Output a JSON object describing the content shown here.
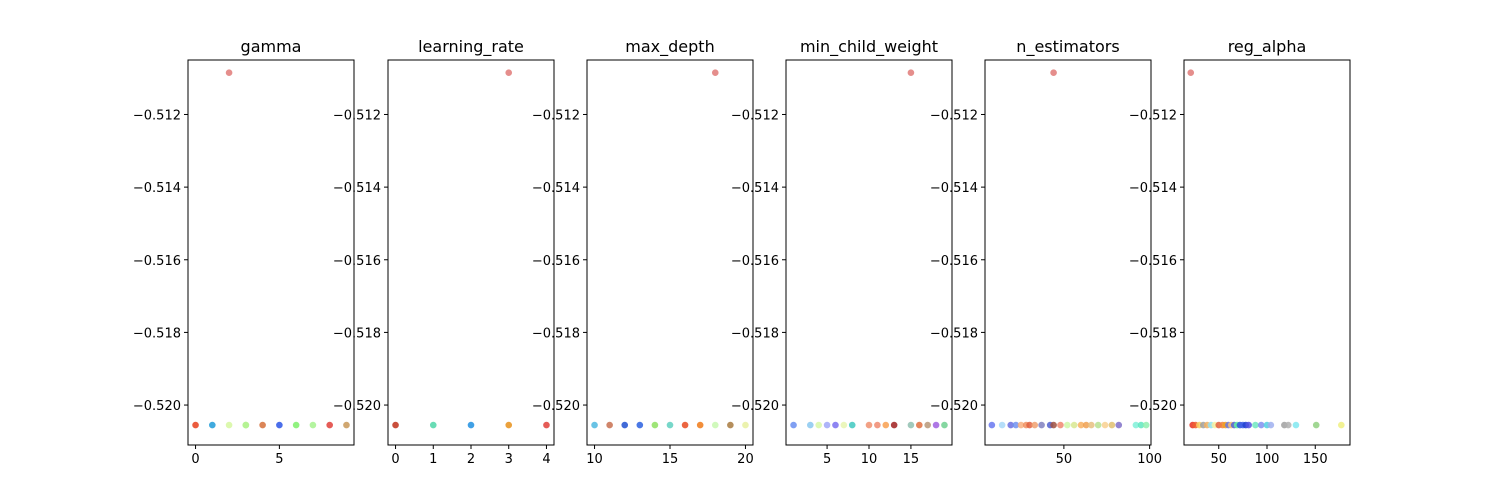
{
  "chart_data": [
    {
      "type": "scatter",
      "title": "gamma",
      "xlabel": "",
      "ylabel": "",
      "ylim": [
        -0.5211,
        -0.5105
      ],
      "yticks": [
        -0.512,
        -0.514,
        -0.516,
        -0.518,
        -0.52
      ],
      "ytick_labels": [
        "−0.512",
        "−0.514",
        "−0.516",
        "−0.518",
        "−0.520"
      ],
      "xlim": [
        -0.45,
        9.45
      ],
      "xticks": [
        0,
        5
      ],
      "xtick_labels": [
        "0",
        "5"
      ],
      "points": [
        {
          "x": 0,
          "y": -0.52055,
          "color": "#e8401c"
        },
        {
          "x": 1,
          "y": -0.52055,
          "color": "#1f9bd8"
        },
        {
          "x": 2,
          "y": -0.52055,
          "color": "#d6f7a0"
        },
        {
          "x": 2,
          "y": -0.51085,
          "color": "#e07a78"
        },
        {
          "x": 3,
          "y": -0.52055,
          "color": "#9be35a"
        },
        {
          "x": 3,
          "y": -0.52055,
          "color": "#b7f59a"
        },
        {
          "x": 4,
          "y": -0.52055,
          "color": "#d5703a"
        },
        {
          "x": 5,
          "y": -0.52055,
          "color": "#2b55e6"
        },
        {
          "x": 6,
          "y": -0.52055,
          "color": "#7ef06a"
        },
        {
          "x": 7,
          "y": -0.52055,
          "color": "#a6f28e"
        },
        {
          "x": 8,
          "y": -0.52055,
          "color": "#e0403a"
        },
        {
          "x": 9,
          "y": -0.52055,
          "color": "#c89858"
        }
      ]
    },
    {
      "type": "scatter",
      "title": "learning_rate",
      "xlabel": "",
      "ylabel": "",
      "ylim": [
        -0.5211,
        -0.5105
      ],
      "yticks": [
        -0.512,
        -0.514,
        -0.516,
        -0.518,
        -0.52
      ],
      "ytick_labels": [
        "−0.512",
        "−0.514",
        "−0.516",
        "−0.518",
        "−0.520"
      ],
      "xlim": [
        -0.2,
        4.2
      ],
      "xticks": [
        0,
        1,
        2,
        3,
        4
      ],
      "xtick_labels": [
        "0",
        "1",
        "2",
        "3",
        "4"
      ],
      "points": [
        {
          "x": 0,
          "y": -0.52055,
          "color": "#c0301a"
        },
        {
          "x": 1,
          "y": -0.52055,
          "color": "#4fd6a8"
        },
        {
          "x": 2,
          "y": -0.52055,
          "color": "#1f8fe0"
        },
        {
          "x": 3,
          "y": -0.52055,
          "color": "#e8901a"
        },
        {
          "x": 3,
          "y": -0.51085,
          "color": "#e07a78"
        },
        {
          "x": 4,
          "y": -0.52055,
          "color": "#e0403a"
        }
      ]
    },
    {
      "type": "scatter",
      "title": "max_depth",
      "xlabel": "",
      "ylabel": "",
      "ylim": [
        -0.5211,
        -0.5105
      ],
      "yticks": [
        -0.512,
        -0.514,
        -0.516,
        -0.518,
        -0.52
      ],
      "ytick_labels": [
        "−0.512",
        "−0.514",
        "−0.516",
        "−0.518",
        "−0.520"
      ],
      "xlim": [
        9.5,
        20.5
      ],
      "xticks": [
        10,
        15,
        20
      ],
      "xtick_labels": [
        "10",
        "15",
        "20"
      ],
      "points": [
        {
          "x": 10,
          "y": -0.52055,
          "color": "#4fb8e0"
        },
        {
          "x": 11,
          "y": -0.52055,
          "color": "#c87050"
        },
        {
          "x": 12,
          "y": -0.52055,
          "color": "#2050d0"
        },
        {
          "x": 13,
          "y": -0.52055,
          "color": "#2a60e0"
        },
        {
          "x": 14,
          "y": -0.52055,
          "color": "#8ee060"
        },
        {
          "x": 15,
          "y": -0.52055,
          "color": "#5fd0c0"
        },
        {
          "x": 16,
          "y": -0.52055,
          "color": "#e84a20"
        },
        {
          "x": 17,
          "y": -0.52055,
          "color": "#f07a18"
        },
        {
          "x": 18,
          "y": -0.52055,
          "color": "#c8f8b0"
        },
        {
          "x": 18,
          "y": -0.51085,
          "color": "#e07a78"
        },
        {
          "x": 19,
          "y": -0.52055,
          "color": "#a87a40"
        },
        {
          "x": 20,
          "y": -0.52055,
          "color": "#e8f0a0"
        }
      ]
    },
    {
      "type": "scatter",
      "title": "min_child_weight",
      "xlabel": "",
      "ylabel": "",
      "ylim": [
        -0.5211,
        -0.5105
      ],
      "yticks": [
        -0.512,
        -0.514,
        -0.516,
        -0.518,
        -0.52
      ],
      "ytick_labels": [
        "−0.512",
        "−0.514",
        "−0.516",
        "−0.518",
        "−0.520"
      ],
      "xlim": [
        0.1,
        19.9
      ],
      "xticks": [
        5,
        10,
        15
      ],
      "xtick_labels": [
        "5",
        "10",
        "15"
      ],
      "points": [
        {
          "x": 1,
          "y": -0.52055,
          "color": "#6a8ef0"
        },
        {
          "x": 3,
          "y": -0.52055,
          "color": "#8ac8f0"
        },
        {
          "x": 4,
          "y": -0.52055,
          "color": "#d8f8a8"
        },
        {
          "x": 5,
          "y": -0.52055,
          "color": "#a0a8f8"
        },
        {
          "x": 6,
          "y": -0.52055,
          "color": "#7a70f0"
        },
        {
          "x": 7,
          "y": -0.52055,
          "color": "#e8f4b0"
        },
        {
          "x": 8,
          "y": -0.52055,
          "color": "#40c8c0"
        },
        {
          "x": 10,
          "y": -0.52055,
          "color": "#f09070"
        },
        {
          "x": 11,
          "y": -0.52055,
          "color": "#f08a70"
        },
        {
          "x": 12,
          "y": -0.52055,
          "color": "#f8a050"
        },
        {
          "x": 13,
          "y": -0.52055,
          "color": "#a02020"
        },
        {
          "x": 15,
          "y": -0.52055,
          "color": "#90c0b0"
        },
        {
          "x": 15,
          "y": -0.51085,
          "color": "#e07a78"
        },
        {
          "x": 16,
          "y": -0.52055,
          "color": "#e07040"
        },
        {
          "x": 17,
          "y": -0.52055,
          "color": "#b89878"
        },
        {
          "x": 18,
          "y": -0.52055,
          "color": "#a060e0"
        },
        {
          "x": 19,
          "y": -0.52055,
          "color": "#70d090"
        }
      ]
    },
    {
      "type": "scatter",
      "title": "n_estimators",
      "xlabel": "",
      "ylabel": "",
      "ylim": [
        -0.5211,
        -0.5105
      ],
      "yticks": [
        -0.512,
        -0.514,
        -0.516,
        -0.518,
        -0.52
      ],
      "ytick_labels": [
        "−0.512",
        "−0.514",
        "−0.516",
        "−0.518",
        "−0.520"
      ],
      "xlim": [
        4.0,
        100.8
      ],
      "xticks": [
        50,
        100
      ],
      "xtick_labels": [
        "50",
        "100"
      ],
      "points": [
        {
          "x": 8,
          "y": -0.52055,
          "color": "#6878f0"
        },
        {
          "x": 14,
          "y": -0.52055,
          "color": "#a8d8f8"
        },
        {
          "x": 19,
          "y": -0.52055,
          "color": "#6a70e0"
        },
        {
          "x": 22,
          "y": -0.52055,
          "color": "#7090f0"
        },
        {
          "x": 25,
          "y": -0.52055,
          "color": "#f8b080"
        },
        {
          "x": 28,
          "y": -0.52055,
          "color": "#f09060"
        },
        {
          "x": 30,
          "y": -0.52055,
          "color": "#e06040"
        },
        {
          "x": 33,
          "y": -0.52055,
          "color": "#f0a070"
        },
        {
          "x": 37,
          "y": -0.52055,
          "color": "#8080c0"
        },
        {
          "x": 42,
          "y": -0.52055,
          "color": "#5060d0"
        },
        {
          "x": 44,
          "y": -0.52055,
          "color": "#a05040"
        },
        {
          "x": 44,
          "y": -0.51085,
          "color": "#e07a78"
        },
        {
          "x": 48,
          "y": -0.52055,
          "color": "#f08870"
        },
        {
          "x": 52,
          "y": -0.52055,
          "color": "#d0f8a8"
        },
        {
          "x": 56,
          "y": -0.52055,
          "color": "#d8e890"
        },
        {
          "x": 60,
          "y": -0.52055,
          "color": "#f8b060"
        },
        {
          "x": 63,
          "y": -0.52055,
          "color": "#f0a050"
        },
        {
          "x": 66,
          "y": -0.52055,
          "color": "#e8c080"
        },
        {
          "x": 70,
          "y": -0.52055,
          "color": "#b8e090"
        },
        {
          "x": 74,
          "y": -0.52055,
          "color": "#f8d090"
        },
        {
          "x": 78,
          "y": -0.52055,
          "color": "#e0c070"
        },
        {
          "x": 82,
          "y": -0.52055,
          "color": "#8070c8"
        },
        {
          "x": 92,
          "y": -0.52055,
          "color": "#80f0d8"
        },
        {
          "x": 95,
          "y": -0.52055,
          "color": "#60e8c0"
        },
        {
          "x": 98,
          "y": -0.52055,
          "color": "#90f0b0"
        }
      ]
    },
    {
      "type": "scatter",
      "title": "reg_alpha",
      "xlabel": "",
      "ylabel": "",
      "ylim": [
        -0.5211,
        -0.5105
      ],
      "yticks": [
        -0.512,
        -0.514,
        -0.516,
        -0.518,
        -0.52
      ],
      "ytick_labels": [
        "−0.512",
        "−0.514",
        "−0.516",
        "−0.518",
        "−0.520"
      ],
      "xlim": [
        14.0,
        186.0
      ],
      "xticks": [
        50,
        100,
        150
      ],
      "xtick_labels": [
        "50",
        "100",
        "150"
      ],
      "points": [
        {
          "x": 21,
          "y": -0.51085,
          "color": "#e07a78"
        },
        {
          "x": 23,
          "y": -0.52055,
          "color": "#e83020"
        },
        {
          "x": 26,
          "y": -0.52055,
          "color": "#f06030"
        },
        {
          "x": 30,
          "y": -0.52055,
          "color": "#f8d060"
        },
        {
          "x": 34,
          "y": -0.52055,
          "color": "#a0a0a0"
        },
        {
          "x": 38,
          "y": -0.52055,
          "color": "#f0b060"
        },
        {
          "x": 42,
          "y": -0.52055,
          "color": "#90e0f0"
        },
        {
          "x": 46,
          "y": -0.52055,
          "color": "#f8f0a0"
        },
        {
          "x": 50,
          "y": -0.52055,
          "color": "#e06040"
        },
        {
          "x": 54,
          "y": -0.52055,
          "color": "#f08040"
        },
        {
          "x": 57,
          "y": -0.52055,
          "color": "#f0a020"
        },
        {
          "x": 60,
          "y": -0.52055,
          "color": "#6878e0"
        },
        {
          "x": 63,
          "y": -0.52055,
          "color": "#f8c070"
        },
        {
          "x": 66,
          "y": -0.52055,
          "color": "#5060d8"
        },
        {
          "x": 69,
          "y": -0.52055,
          "color": "#60f0a0"
        },
        {
          "x": 72,
          "y": -0.52055,
          "color": "#3050e0"
        },
        {
          "x": 75,
          "y": -0.52055,
          "color": "#4060e8"
        },
        {
          "x": 78,
          "y": -0.52055,
          "color": "#2040d0"
        },
        {
          "x": 81,
          "y": -0.52055,
          "color": "#5050e0"
        },
        {
          "x": 88,
          "y": -0.52055,
          "color": "#70e8c0"
        },
        {
          "x": 94,
          "y": -0.52055,
          "color": "#8090f0"
        },
        {
          "x": 100,
          "y": -0.52055,
          "color": "#50d0e0"
        },
        {
          "x": 104,
          "y": -0.52055,
          "color": "#a0b0f0"
        },
        {
          "x": 118,
          "y": -0.52055,
          "color": "#a0a0a0"
        },
        {
          "x": 122,
          "y": -0.52055,
          "color": "#b0b0b0"
        },
        {
          "x": 130,
          "y": -0.52055,
          "color": "#80e8f0"
        },
        {
          "x": 151,
          "y": -0.52055,
          "color": "#90d080"
        },
        {
          "x": 177,
          "y": -0.52055,
          "color": "#f0f080"
        }
      ]
    }
  ]
}
